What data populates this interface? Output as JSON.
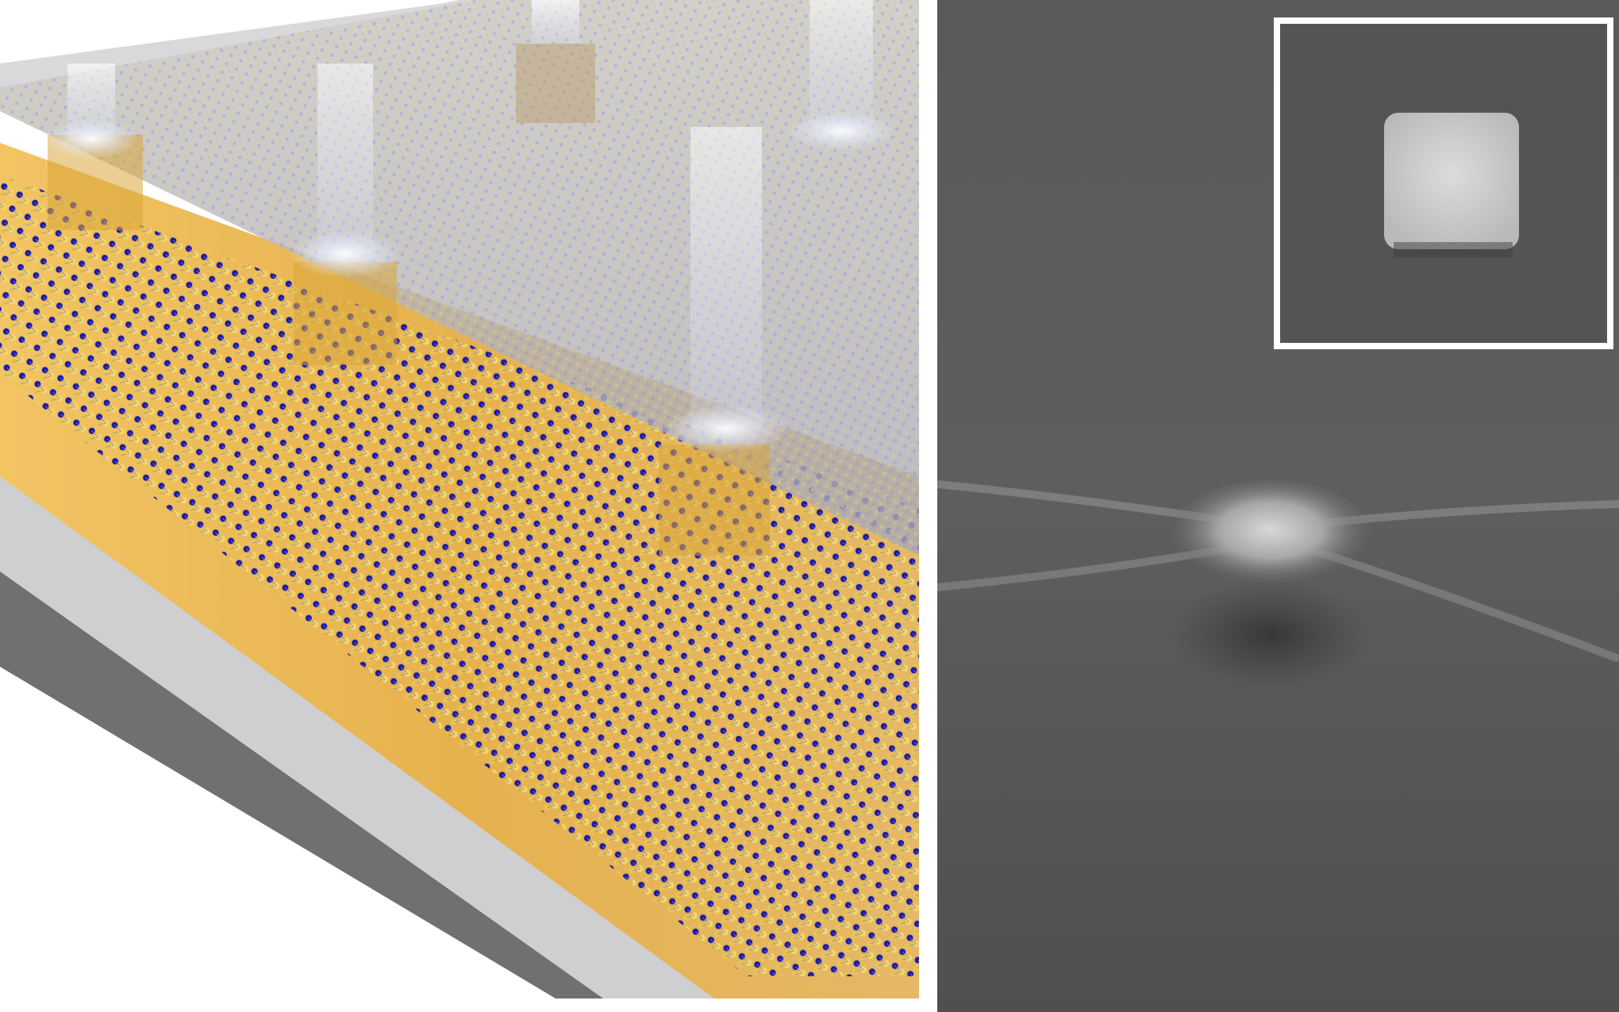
{
  "figure": {
    "panels": [
      {
        "name": "illustration-panel",
        "kind": "3D rendering of a transparent slab with square cavities on a layered atomic crystal lattice over a gold substrate",
        "colors": {
          "substrate_gold": "#e9b95a",
          "slab_gray": "#c8c8cc",
          "atom_blue": "#1a1aa0",
          "atom_yellow": "#f2d76a",
          "glow": "#ffffff"
        }
      },
      {
        "name": "sem-micrograph-panel",
        "kind": "grayscale scanning electron micrograph of a dome-shaped bump with a square pillar shown in an inset",
        "colors": {
          "background_gray": "#585858",
          "highlight": "#e2e2e2",
          "inset_frame": "#ffffff"
        }
      }
    ]
  }
}
